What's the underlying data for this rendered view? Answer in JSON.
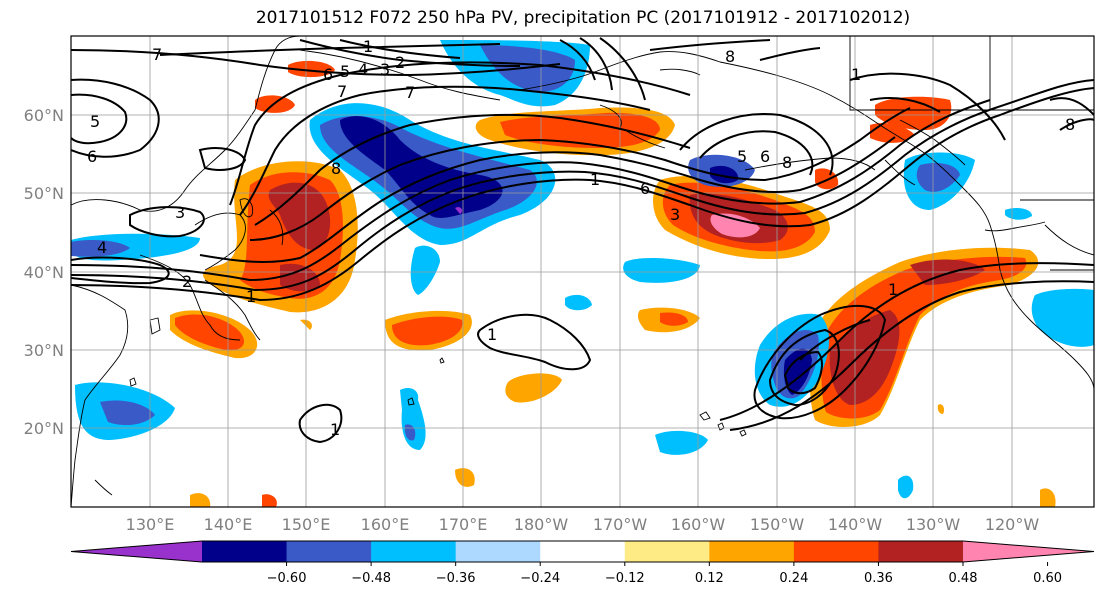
{
  "title": "2017101512 F072 250 hPa PV, precipitation PC (2017101912 - 2017102012)",
  "lat_labels": [
    "60°N",
    "50°N",
    "40°N",
    "30°N",
    "20°N"
  ],
  "lon_labels": [
    "130°E",
    "140°E",
    "150°E",
    "160°E",
    "170°E",
    "180°W",
    "170°W",
    "160°W",
    "150°W",
    "140°W",
    "130°W",
    "120°W"
  ],
  "colorbar": {
    "colors": [
      "#9932CC",
      "#00008B",
      "#3A5AC8",
      "#00BFFF",
      "#ADD8FF",
      "#FFFFFF",
      "#FFEB85",
      "#FFA500",
      "#FF4500",
      "#B22222",
      "#FF85B0"
    ],
    "tick_labels": [
      "−0.60",
      "−0.48",
      "−0.36",
      "−0.24",
      "−0.12",
      "0.12",
      "0.24",
      "0.36",
      "0.48",
      "0.60"
    ]
  },
  "contour_labels": [
    "7",
    "1",
    "2",
    "3",
    "4",
    "5",
    "6",
    "7",
    "8",
    "7",
    "5",
    "6",
    "3",
    "4",
    "2",
    "1",
    "8",
    "3",
    "1",
    "6",
    "5",
    "6",
    "8",
    "1",
    "1",
    "1",
    "1",
    "8"
  ]
}
